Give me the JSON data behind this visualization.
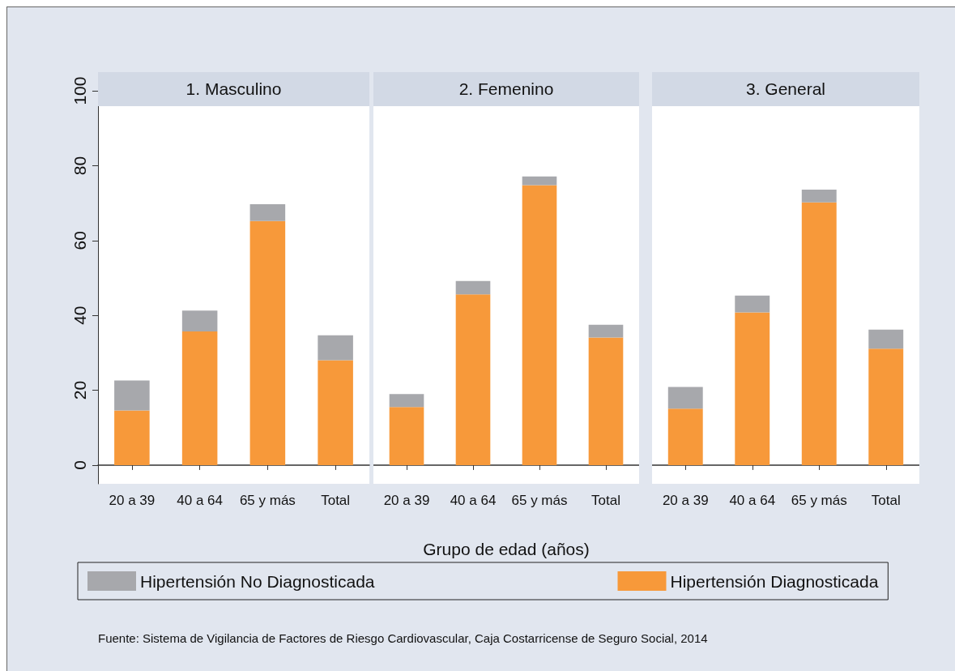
{
  "chart_data": [
    {
      "type": "bar",
      "title": "1. Masculino",
      "stacked": true,
      "categories": [
        "20 a 39",
        "40 a 64",
        "65 y más",
        "Total"
      ],
      "ylim": [
        -5,
        105
      ],
      "yticks": [
        0,
        20,
        40,
        60,
        80,
        100
      ],
      "legend": "bottom",
      "annotations": [
        "Fuente:  Sistema de Vigilancia de Factores de Riesgo Cardiovascular, Caja Costarricense de Seguro Social, 2014"
      ],
      "series": [
        {
          "name": "Hipertensión Diagnosticada",
          "color": "#f7993a",
          "values": [
            14.6,
            35.7,
            65.2,
            28.0
          ]
        },
        {
          "name": "Hipertensión No Diagnosticada",
          "color": "#a7a8ac",
          "values": [
            8.0,
            5.6,
            4.5,
            6.7
          ]
        }
      ]
    },
    {
      "type": "bar",
      "title": "2. Femenino",
      "stacked": true,
      "xlabel": "Grupo de edad (años)",
      "categories": [
        "20 a 39",
        "40 a 64",
        "65 y más",
        "Total"
      ],
      "ylim": [
        -5,
        105
      ],
      "tick_labels": "x",
      "series": [
        {
          "color": "#f7993a",
          "values": [
            15.5,
            45.6,
            74.8,
            34.1
          ]
        },
        {
          "color": "#a7a8ac",
          "values": [
            3.5,
            3.6,
            2.3,
            3.4
          ]
        }
      ]
    },
    {
      "type": "bar",
      "title": "3. General",
      "stacked": true,
      "categories": [
        "20 a 39",
        "40 a 64",
        "65 y más",
        "Total"
      ],
      "ylim": [
        -5,
        105
      ],
      "tick_labels": "x",
      "series": [
        {
          "color": "#f7993a",
          "values": [
            15.1,
            40.8,
            70.2,
            31.1
          ]
        },
        {
          "color": "#a7a8ac",
          "values": [
            5.8,
            4.5,
            3.4,
            5.1
          ]
        }
      ]
    }
  ]
}
